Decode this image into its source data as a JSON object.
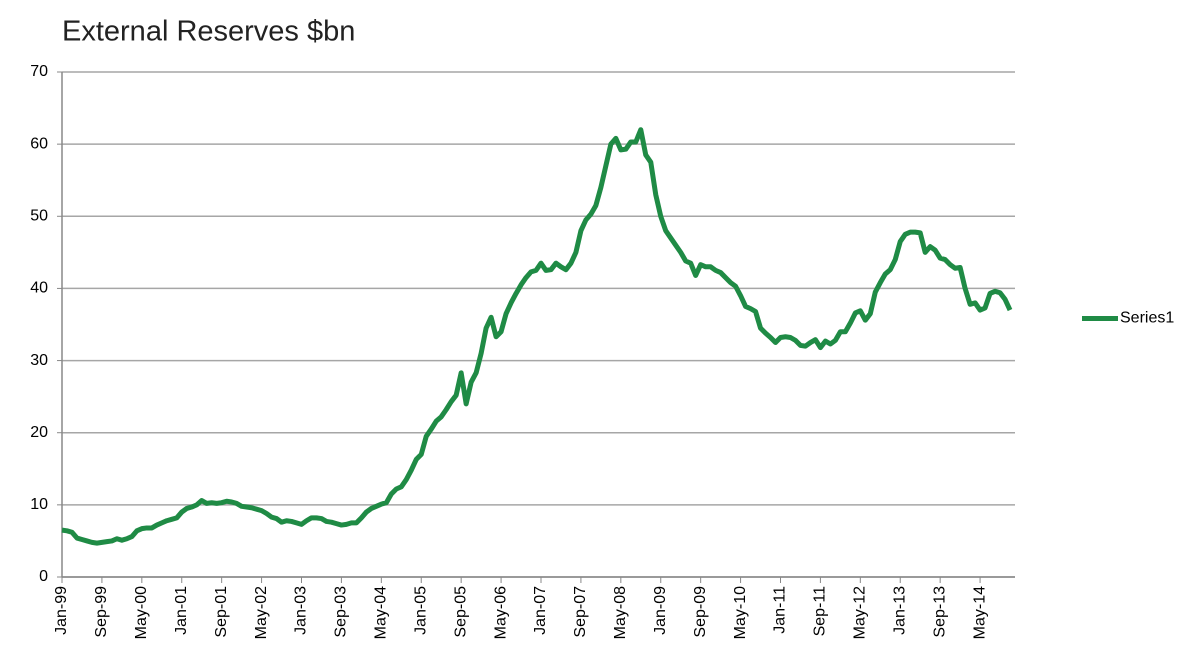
{
  "chart_data": {
    "type": "line",
    "title": "External Reserves $bn",
    "categories": [
      "Jan-99",
      null,
      null,
      null,
      null,
      null,
      null,
      null,
      "Sep-99",
      null,
      null,
      null,
      null,
      null,
      null,
      null,
      "May-00",
      null,
      null,
      null,
      null,
      null,
      null,
      null,
      "Jan-01",
      null,
      null,
      null,
      null,
      null,
      null,
      null,
      "Sep-01",
      null,
      null,
      null,
      null,
      null,
      null,
      null,
      "May-02",
      null,
      null,
      null,
      null,
      null,
      null,
      null,
      "Jan-03",
      null,
      null,
      null,
      null,
      null,
      null,
      null,
      "Sep-03",
      null,
      null,
      null,
      null,
      null,
      null,
      null,
      "May-04",
      null,
      null,
      null,
      null,
      null,
      null,
      null,
      "Jan-05",
      null,
      null,
      null,
      null,
      null,
      null,
      null,
      "Sep-05",
      null,
      null,
      null,
      null,
      null,
      null,
      null,
      "May-06",
      null,
      null,
      null,
      null,
      null,
      null,
      null,
      "Jan-07",
      null,
      null,
      null,
      null,
      null,
      null,
      null,
      "Sep-07",
      null,
      null,
      null,
      null,
      null,
      null,
      null,
      "May-08",
      null,
      null,
      null,
      null,
      null,
      null,
      null,
      "Jan-09",
      null,
      null,
      null,
      null,
      null,
      null,
      null,
      "Sep-09",
      null,
      null,
      null,
      null,
      null,
      null,
      null,
      "May-10",
      null,
      null,
      null,
      null,
      null,
      null,
      null,
      "Jan-11",
      null,
      null,
      null,
      null,
      null,
      null,
      null,
      "Sep-11",
      null,
      null,
      null,
      null,
      null,
      null,
      null,
      "May-12",
      null,
      null,
      null,
      null,
      null,
      null,
      null,
      "Jan-13",
      null,
      null,
      null,
      null,
      null,
      null,
      null,
      "Sep-13",
      null,
      null,
      null,
      null,
      null,
      null,
      null,
      "May-14",
      null,
      null,
      null,
      null,
      null,
      null
    ],
    "series": [
      {
        "name": "Series1",
        "color": "#1f8b45",
        "values": [
          6.5,
          6.4,
          6.2,
          5.4,
          5.2,
          5.0,
          4.8,
          4.7,
          4.8,
          4.9,
          5.0,
          5.3,
          5.1,
          5.3,
          5.6,
          6.4,
          6.7,
          6.8,
          6.8,
          7.2,
          7.5,
          7.8,
          8.0,
          8.2,
          9.0,
          9.5,
          9.7,
          10.0,
          10.6,
          10.2,
          10.3,
          10.2,
          10.3,
          10.5,
          10.4,
          10.2,
          9.8,
          9.7,
          9.6,
          9.4,
          9.2,
          8.8,
          8.3,
          8.1,
          7.6,
          7.8,
          7.7,
          7.5,
          7.3,
          7.8,
          8.2,
          8.2,
          8.1,
          7.7,
          7.6,
          7.4,
          7.2,
          7.3,
          7.5,
          7.5,
          8.2,
          9.0,
          9.5,
          9.8,
          10.1,
          10.3,
          11.5,
          12.2,
          12.5,
          13.5,
          14.8,
          16.3,
          17.0,
          19.5,
          20.5,
          21.6,
          22.2,
          23.2,
          24.3,
          25.2,
          28.3,
          24.0,
          27.0,
          28.3,
          31.0,
          34.5,
          36.0,
          33.3,
          34.0,
          36.5,
          38.0,
          39.3,
          40.5,
          41.5,
          42.3,
          42.5,
          43.5,
          42.5,
          42.6,
          43.5,
          43.0,
          42.6,
          43.5,
          45.0,
          48.0,
          49.5,
          50.3,
          51.5,
          54.0,
          57.0,
          60.0,
          60.8,
          59.2,
          59.3,
          60.3,
          60.3,
          62.0,
          58.5,
          57.5,
          53.0,
          50.0,
          48.0,
          47.0,
          46.0,
          45.0,
          43.8,
          43.5,
          41.8,
          43.3,
          43.0,
          43.0,
          42.5,
          42.2,
          41.5,
          40.8,
          40.3,
          39.0,
          37.5,
          37.2,
          36.8,
          34.5,
          33.8,
          33.2,
          32.5,
          33.2,
          33.3,
          33.2,
          32.8,
          32.1,
          32.0,
          32.5,
          32.9,
          31.8,
          32.7,
          32.3,
          32.8,
          34.0,
          34.0,
          35.2,
          36.6,
          36.9,
          35.6,
          36.5,
          39.5,
          40.8,
          42.0,
          42.6,
          44.0,
          46.5,
          47.5,
          47.8,
          47.8,
          47.7,
          45.0,
          45.8,
          45.3,
          44.2,
          44.0,
          43.3,
          42.8,
          42.9,
          40.0,
          37.8,
          38.0,
          37.0,
          37.3,
          39.3,
          39.6,
          39.4,
          38.5,
          37.0
        ]
      }
    ],
    "ylim": [
      0,
      70
    ],
    "yticks": [
      0,
      10,
      20,
      30,
      40,
      50,
      60,
      70
    ],
    "grid": true,
    "legend": "right"
  }
}
